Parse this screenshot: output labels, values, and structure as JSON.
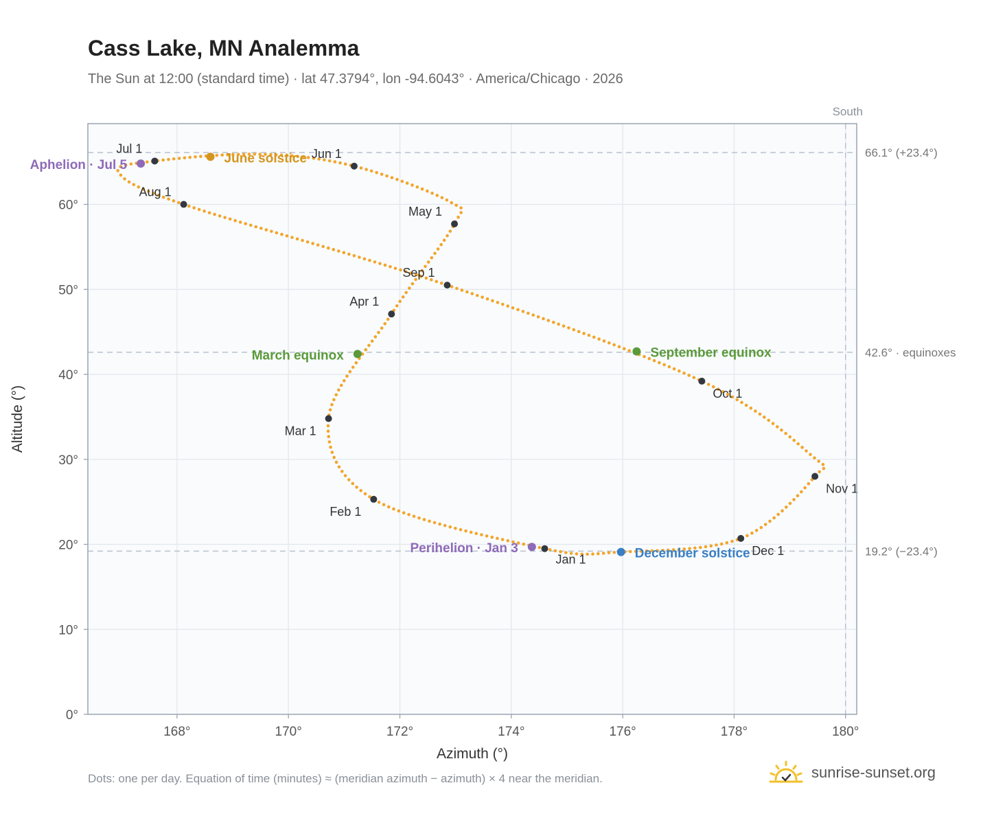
{
  "header": {
    "title": "Cass Lake, MN Analemma",
    "subtitle": "The Sun at 12:00 (standard time) · lat 47.3794°, lon -94.6043° · America/Chicago · 2026"
  },
  "footer": {
    "note": "Dots: one per day. Equation of time (minutes) ≈ (meridian azimuth − azimuth) × 4 near the meridian.",
    "brand": "sunrise-sunset.org"
  },
  "colors": {
    "curve": "#f2a52a",
    "month_dot": "#333840",
    "june_solstice": "#d4951f",
    "december_solstice": "#3a7fc4",
    "equinox": "#5a9a3a",
    "apsis": "#8e6ab8",
    "brand_sun": "#f2c02a"
  },
  "chart_data": {
    "type": "scatter",
    "xlabel": "Azimuth (°)",
    "ylabel": "Altitude (°)",
    "xlim": [
      166.4,
      180.2
    ],
    "ylim": [
      0,
      69.5
    ],
    "x_ticks": [
      168,
      170,
      172,
      174,
      176,
      178,
      180
    ],
    "y_ticks": [
      0,
      10,
      20,
      30,
      40,
      50,
      60
    ],
    "grid": true,
    "meridian": {
      "label": "South",
      "azimuth": 180
    },
    "reference_lines": [
      {
        "altitude": 66.1,
        "label": "66.1° (+23.4°)"
      },
      {
        "altitude": 42.6,
        "label": "42.6° · equinoxes"
      },
      {
        "altitude": 19.2,
        "label": "19.2° (−23.4°)"
      }
    ],
    "month_points": [
      {
        "label": "Jan 1",
        "x": 174.6,
        "y": 19.5
      },
      {
        "label": "Feb 1",
        "x": 171.53,
        "y": 25.3
      },
      {
        "label": "Mar 1",
        "x": 170.72,
        "y": 34.8
      },
      {
        "label": "Apr 1",
        "x": 171.85,
        "y": 47.1
      },
      {
        "label": "May 1",
        "x": 172.98,
        "y": 57.7
      },
      {
        "label": "Jun 1",
        "x": 171.18,
        "y": 64.5
      },
      {
        "label": "Jul 1",
        "x": 167.6,
        "y": 65.1
      },
      {
        "label": "Aug 1",
        "x": 168.12,
        "y": 60.0
      },
      {
        "label": "Sep 1",
        "x": 172.85,
        "y": 50.5
      },
      {
        "label": "Oct 1",
        "x": 177.42,
        "y": 39.2
      },
      {
        "label": "Nov 1",
        "x": 179.45,
        "y": 28.0
      },
      {
        "label": "Dec 1",
        "x": 178.12,
        "y": 20.7
      }
    ],
    "events": [
      {
        "label": "June solstice",
        "x": 168.6,
        "y": 65.6,
        "color": "#d4951f"
      },
      {
        "label": "December solstice",
        "x": 175.97,
        "y": 19.1,
        "color": "#3a7fc4"
      },
      {
        "label": "March equinox",
        "x": 171.24,
        "y": 42.4,
        "color": "#5a9a3a"
      },
      {
        "label": "September equinox",
        "x": 176.25,
        "y": 42.7,
        "color": "#5a9a3a"
      },
      {
        "label": "Aphelion · Jul 5",
        "x": 167.35,
        "y": 64.8,
        "color": "#8e6ab8"
      },
      {
        "label": "Perihelion · Jan 3",
        "x": 174.37,
        "y": 19.7,
        "color": "#8e6ab8"
      }
    ],
    "path_knots": [
      {
        "x": 174.6,
        "y": 19.5
      },
      {
        "x": 171.53,
        "y": 25.3
      },
      {
        "x": 170.72,
        "y": 34.8
      },
      {
        "x": 171.85,
        "y": 47.1
      },
      {
        "x": 172.98,
        "y": 57.7
      },
      {
        "x": 172.9,
        "y": 60.3
      },
      {
        "x": 171.18,
        "y": 64.5
      },
      {
        "x": 169.5,
        "y": 65.9
      },
      {
        "x": 167.6,
        "y": 65.1
      },
      {
        "x": 166.95,
        "y": 63.8
      },
      {
        "x": 168.12,
        "y": 60.0
      },
      {
        "x": 172.85,
        "y": 50.5
      },
      {
        "x": 177.42,
        "y": 39.2
      },
      {
        "x": 179.4,
        "y": 30.4
      },
      {
        "x": 179.45,
        "y": 28.0
      },
      {
        "x": 178.12,
        "y": 20.7
      },
      {
        "x": 175.97,
        "y": 19.1
      },
      {
        "x": 174.6,
        "y": 19.5
      }
    ]
  }
}
